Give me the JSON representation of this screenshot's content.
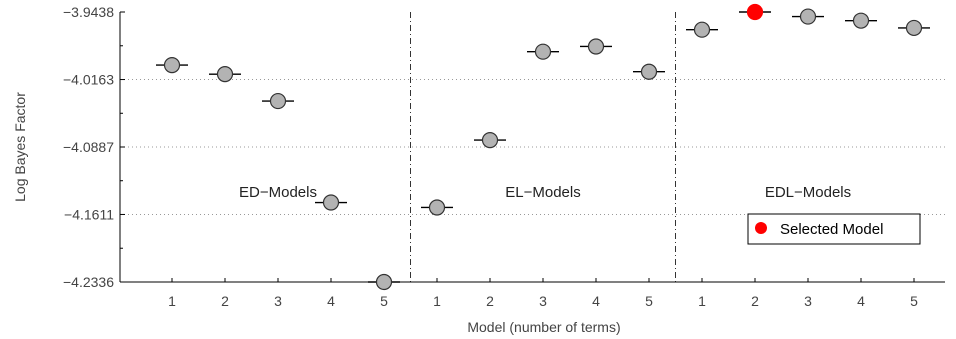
{
  "chart_data": {
    "type": "scatter",
    "xlabel": "Model (number of terms)",
    "ylabel": "Log Bayes Factor",
    "ylim": [
      -4.2336,
      -3.9438
    ],
    "yticks": [
      "-3.9438",
      "-4.0163",
      "-4.0887",
      "-4.1611",
      "-4.2336"
    ],
    "grid": "horizontal dotted",
    "groups": [
      {
        "name": "ED−Models",
        "x": [
          "1",
          "2",
          "3",
          "4",
          "5"
        ],
        "y": [
          -4.0008,
          -4.0105,
          -4.0394,
          -4.1483,
          -4.2336
        ],
        "selected": -1
      },
      {
        "name": "EL−Models",
        "x": [
          "1",
          "2",
          "3",
          "4",
          "5"
        ],
        "y": [
          -4.1536,
          -4.0813,
          -3.9864,
          -3.9808,
          -4.0079
        ],
        "selected": -1
      },
      {
        "name": "EDL−Models",
        "x": [
          "1",
          "2",
          "3",
          "4",
          "5"
        ],
        "y": [
          -3.9628,
          -3.9438,
          -3.9487,
          -3.9531,
          -3.9609
        ],
        "selected": 1
      }
    ],
    "legend": {
      "label": "Selected Model",
      "position": "lower-right"
    },
    "colors": {
      "marker": "#b3b3b3",
      "selected": "#ff0000",
      "grid": "#999999"
    }
  }
}
